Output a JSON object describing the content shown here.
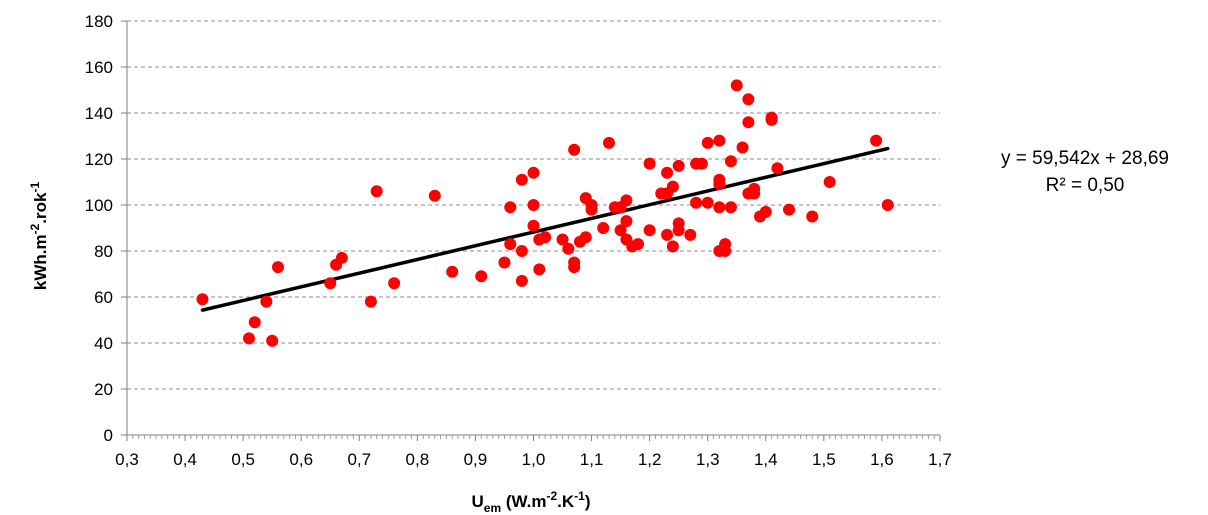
{
  "chart_data": {
    "type": "scatter",
    "xlim": [
      0.3,
      1.7
    ],
    "ylim": [
      0,
      180
    ],
    "x_ticks": [
      "0,3",
      "0,4",
      "0,5",
      "0,6",
      "0,7",
      "0,8",
      "0,9",
      "1,0",
      "1,1",
      "1,2",
      "1,3",
      "1,4",
      "1,5",
      "1,6",
      "1,7"
    ],
    "y_ticks": [
      "0",
      "20",
      "40",
      "60",
      "80",
      "100",
      "120",
      "140",
      "160",
      "180"
    ],
    "grid": "horizontal dashed",
    "xlabel": {
      "main": "U",
      "sub": "em",
      "rest1": " (W.m",
      "sup1": "-2",
      "rest2": ".K",
      "sup2": "-1",
      "rest3": ")"
    },
    "ylabel": {
      "main": "kWh.m",
      "sup1": "-2",
      "rest1": ".rok",
      "sup2": "-1"
    },
    "marker_color": "#ff0000",
    "trendline": {
      "slope": 59.542,
      "intercept": 28.69,
      "x_range": [
        0.43,
        1.61
      ],
      "color": "#000000",
      "equation": "y = 59,542x + 28,69",
      "r2": "R² = 0,50"
    },
    "points": [
      {
        "x": 0.43,
        "y": 59
      },
      {
        "x": 0.51,
        "y": 42
      },
      {
        "x": 0.52,
        "y": 49
      },
      {
        "x": 0.54,
        "y": 58
      },
      {
        "x": 0.55,
        "y": 41
      },
      {
        "x": 0.56,
        "y": 73
      },
      {
        "x": 0.65,
        "y": 66
      },
      {
        "x": 0.66,
        "y": 74
      },
      {
        "x": 0.67,
        "y": 77
      },
      {
        "x": 0.72,
        "y": 58
      },
      {
        "x": 0.73,
        "y": 106
      },
      {
        "x": 0.76,
        "y": 66
      },
      {
        "x": 0.83,
        "y": 104
      },
      {
        "x": 0.86,
        "y": 71
      },
      {
        "x": 0.91,
        "y": 69
      },
      {
        "x": 0.95,
        "y": 75
      },
      {
        "x": 0.96,
        "y": 99
      },
      {
        "x": 0.96,
        "y": 83
      },
      {
        "x": 0.98,
        "y": 111
      },
      {
        "x": 0.98,
        "y": 80
      },
      {
        "x": 0.98,
        "y": 67
      },
      {
        "x": 1.0,
        "y": 114
      },
      {
        "x": 1.0,
        "y": 100
      },
      {
        "x": 1.0,
        "y": 91
      },
      {
        "x": 1.01,
        "y": 85
      },
      {
        "x": 1.01,
        "y": 72
      },
      {
        "x": 1.02,
        "y": 86
      },
      {
        "x": 1.05,
        "y": 85
      },
      {
        "x": 1.06,
        "y": 81
      },
      {
        "x": 1.07,
        "y": 124
      },
      {
        "x": 1.07,
        "y": 75
      },
      {
        "x": 1.07,
        "y": 73
      },
      {
        "x": 1.08,
        "y": 84
      },
      {
        "x": 1.09,
        "y": 103
      },
      {
        "x": 1.09,
        "y": 86
      },
      {
        "x": 1.1,
        "y": 100
      },
      {
        "x": 1.1,
        "y": 98
      },
      {
        "x": 1.12,
        "y": 90
      },
      {
        "x": 1.13,
        "y": 127
      },
      {
        "x": 1.14,
        "y": 99
      },
      {
        "x": 1.15,
        "y": 99
      },
      {
        "x": 1.15,
        "y": 89
      },
      {
        "x": 1.16,
        "y": 102
      },
      {
        "x": 1.16,
        "y": 93
      },
      {
        "x": 1.16,
        "y": 85
      },
      {
        "x": 1.17,
        "y": 82
      },
      {
        "x": 1.18,
        "y": 83
      },
      {
        "x": 1.2,
        "y": 118
      },
      {
        "x": 1.2,
        "y": 89
      },
      {
        "x": 1.22,
        "y": 105
      },
      {
        "x": 1.23,
        "y": 114
      },
      {
        "x": 1.23,
        "y": 105
      },
      {
        "x": 1.23,
        "y": 87
      },
      {
        "x": 1.24,
        "y": 108
      },
      {
        "x": 1.24,
        "y": 82
      },
      {
        "x": 1.25,
        "y": 117
      },
      {
        "x": 1.25,
        "y": 92
      },
      {
        "x": 1.25,
        "y": 89
      },
      {
        "x": 1.27,
        "y": 87
      },
      {
        "x": 1.28,
        "y": 118
      },
      {
        "x": 1.28,
        "y": 101
      },
      {
        "x": 1.29,
        "y": 118
      },
      {
        "x": 1.3,
        "y": 127
      },
      {
        "x": 1.3,
        "y": 101
      },
      {
        "x": 1.32,
        "y": 128
      },
      {
        "x": 1.32,
        "y": 111
      },
      {
        "x": 1.32,
        "y": 109
      },
      {
        "x": 1.32,
        "y": 99
      },
      {
        "x": 1.32,
        "y": 80
      },
      {
        "x": 1.33,
        "y": 83
      },
      {
        "x": 1.33,
        "y": 80
      },
      {
        "x": 1.34,
        "y": 119
      },
      {
        "x": 1.34,
        "y": 99
      },
      {
        "x": 1.35,
        "y": 152
      },
      {
        "x": 1.36,
        "y": 125
      },
      {
        "x": 1.37,
        "y": 146
      },
      {
        "x": 1.37,
        "y": 136
      },
      {
        "x": 1.37,
        "y": 105
      },
      {
        "x": 1.38,
        "y": 107
      },
      {
        "x": 1.38,
        "y": 105
      },
      {
        "x": 1.39,
        "y": 95
      },
      {
        "x": 1.4,
        "y": 97
      },
      {
        "x": 1.41,
        "y": 138
      },
      {
        "x": 1.41,
        "y": 137
      },
      {
        "x": 1.42,
        "y": 116
      },
      {
        "x": 1.44,
        "y": 98
      },
      {
        "x": 1.48,
        "y": 95
      },
      {
        "x": 1.51,
        "y": 110
      },
      {
        "x": 1.59,
        "y": 128
      },
      {
        "x": 1.61,
        "y": 100
      }
    ]
  }
}
